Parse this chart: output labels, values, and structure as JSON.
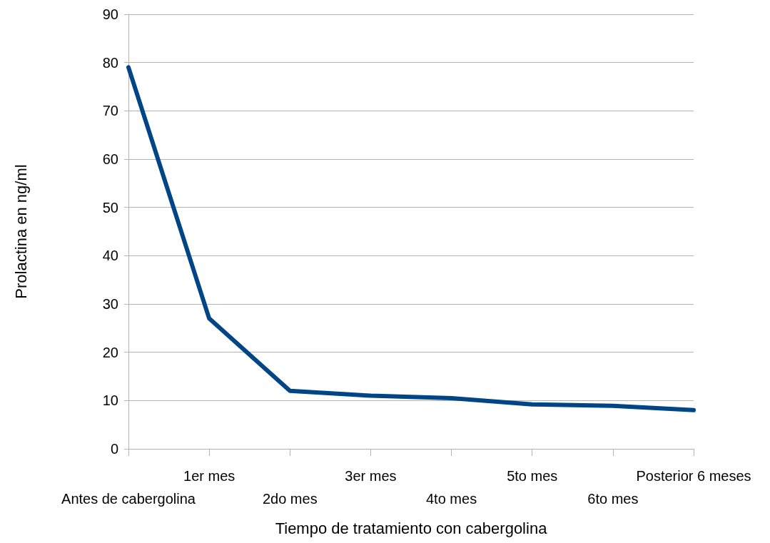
{
  "chart_data": {
    "type": "line",
    "xlabel": "Tiempo de tratamiento con cabergolina",
    "ylabel": "Prolactina en ng/ml",
    "categories": [
      "Antes de cabergolina",
      "1er mes",
      "2do mes",
      "3er mes",
      "4to mes",
      "5to mes",
      "6to mes",
      "Posterior 6 meses"
    ],
    "series": [
      {
        "color": "#004586",
        "values": [
          79,
          27,
          12,
          11,
          10.5,
          9.2,
          8.9,
          8
        ]
      }
    ],
    "ylim": [
      0,
      90
    ],
    "yticks": [
      0,
      10,
      20,
      30,
      40,
      50,
      60,
      70,
      80,
      90
    ],
    "grid": "y",
    "marker": "none",
    "line_style": "solid"
  }
}
